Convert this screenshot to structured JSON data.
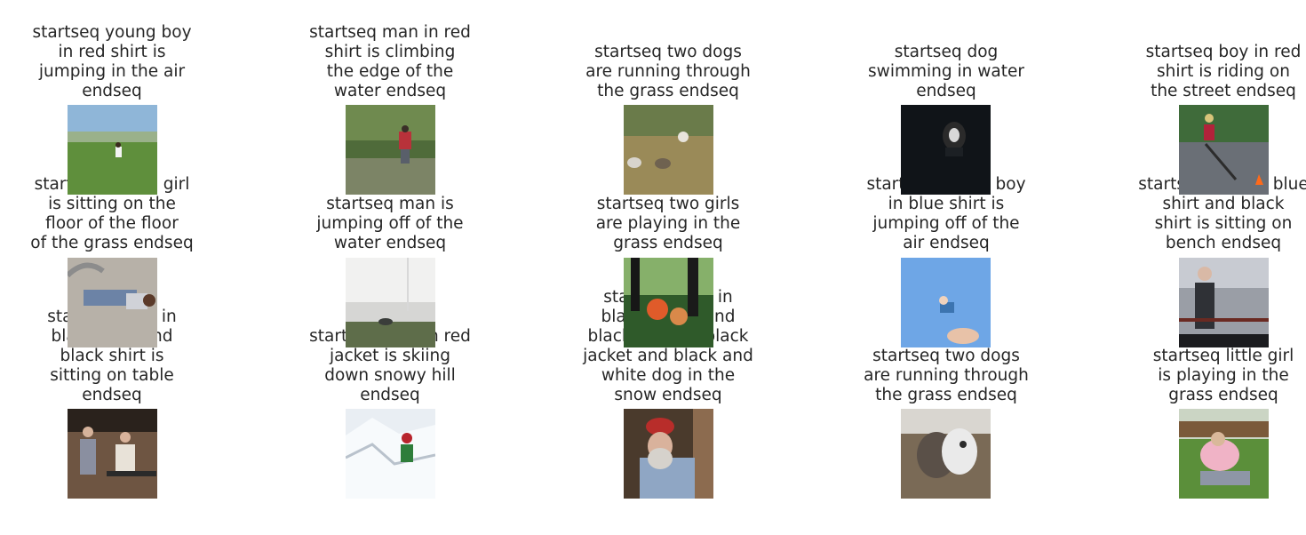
{
  "panels": [
    {
      "caption": "startseq young boy\nin red shirt is\njumping in the air\nendseq",
      "image": "photo-child-in-grass-field"
    },
    {
      "caption": "startseq man in red\nshirt is climbing\nthe edge of the\nwater endseq",
      "image": "photo-man-sitting-by-creek"
    },
    {
      "caption": "startseq two dogs\nare running through\nthe grass endseq",
      "image": "photo-animals-in-dry-grass"
    },
    {
      "caption": "startseq dog\nswimming in water\nendseq",
      "image": "photo-dog-swimming-dark-water"
    },
    {
      "caption": "startseq boy in red\nshirt is riding on\nthe street endseq",
      "image": "photo-boy-on-scooter"
    },
    {
      "caption": "startseq young girl\nis sitting on the\nfloor of the floor\nof the grass endseq",
      "image": "photo-person-lying-on-ground"
    },
    {
      "caption": "startseq man is\njumping off of the\nwater endseq",
      "image": "photo-foggy-field"
    },
    {
      "caption": "startseq two girls\nare playing in the\ngrass endseq",
      "image": "photo-children-with-flowers"
    },
    {
      "caption": "startseq young boy\nin blue shirt is\njumping off of the\nair endseq",
      "image": "photo-child-thrown-in-sky"
    },
    {
      "caption": "startseq man in blue\nshirt and black\nshirt is sitting on\nbench endseq",
      "image": "photo-man-in-suit-street"
    },
    {
      "caption": "startseq man in\nblack shirt and\nblack shirt is\nsitting on table\nendseq",
      "image": "photo-family-in-room"
    },
    {
      "caption": "startseq man in red\njacket is skiing\ndown snowy hill\nendseq",
      "image": "photo-skier-in-snow"
    },
    {
      "caption": "startseq man in\nblack jacket and\nblack hat and black\njacket and black and\nwhite dog in the\nsnow endseq",
      "image": "photo-bearded-man-in-cap"
    },
    {
      "caption": "startseq two dogs\nare running through\nthe grass endseq",
      "image": "photo-two-dogs-on-dirt"
    },
    {
      "caption": "startseq little girl\nis playing in the\ngrass endseq",
      "image": "photo-girls-hugging-on-grass"
    }
  ]
}
